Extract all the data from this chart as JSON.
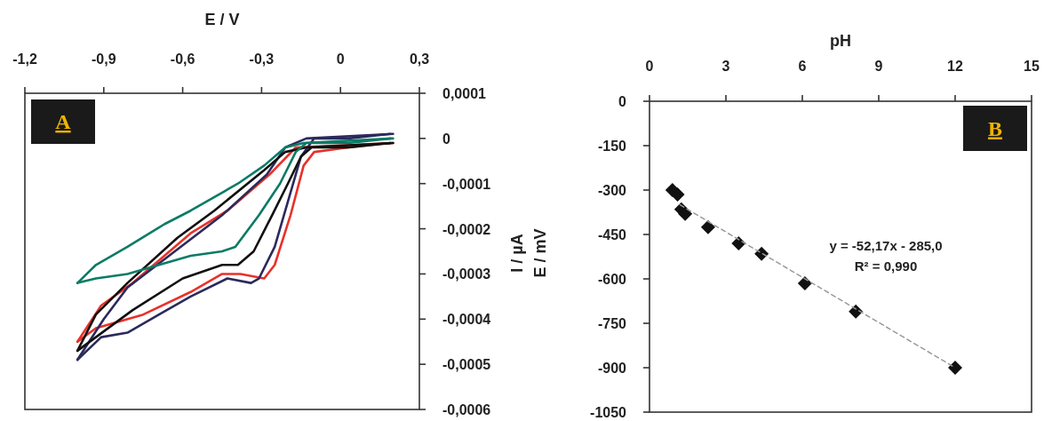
{
  "chart_data": [
    {
      "type": "line",
      "xlabel": "E / V",
      "ylabel": "I / µA",
      "annotations": [
        "A"
      ],
      "xlim": [
        -1.2,
        0.3
      ],
      "xticks": [
        {
          "value": -1.2,
          "label": "-1,2"
        },
        {
          "value": -0.9,
          "label": "-0,9"
        },
        {
          "value": -0.6,
          "label": "-0,6"
        },
        {
          "value": -0.3,
          "label": "-0,3"
        },
        0,
        {
          "value": 0.3,
          "label": "0,3"
        }
      ],
      "ylim": [
        -0.0006,
        0.0001
      ],
      "yticks": [
        {
          "value": 0.0001,
          "label": "0,0001"
        },
        0,
        {
          "value": -0.0001,
          "label": "-0,0001"
        },
        {
          "value": -0.0002,
          "label": "-0,0002"
        },
        {
          "value": -0.0003,
          "label": "-0,0003"
        },
        {
          "value": -0.0004,
          "label": "-0,0004"
        },
        {
          "value": -0.0005,
          "label": "-0,0005"
        },
        {
          "value": -0.0006,
          "label": "-0,0006"
        }
      ],
      "grid": false,
      "series": [
        {
          "color": "#e8312a",
          "x": [
            0.2,
            -0.17,
            -0.27,
            -0.43,
            -0.57,
            -0.79,
            -0.91,
            -1.0
          ],
          "values": [
            -1e-05,
            -2e-05,
            -8e-05,
            -0.00016,
            -0.00021,
            -0.00032,
            -0.00037,
            -0.00045
          ]
        },
        {
          "color": "#e8312a",
          "x": [
            -1.0,
            -0.93,
            -0.75,
            -0.57,
            -0.45,
            -0.38,
            -0.29,
            -0.25,
            -0.19,
            -0.14,
            -0.1,
            0.03,
            0.19
          ],
          "values": [
            -0.00045,
            -0.00042,
            -0.00039,
            -0.00034,
            -0.0003,
            -0.0003,
            -0.00031,
            -0.00028,
            -0.00017,
            -6e-05,
            -3e-05,
            -2e-05,
            -1e-05
          ]
        },
        {
          "color": "#2b2a5c",
          "x": [
            0.2,
            -0.13,
            -0.21,
            -0.28,
            -0.45,
            -0.63,
            -0.81,
            -0.9,
            -1.0
          ],
          "values": [
            1e-05,
            0,
            -2e-05,
            -8e-05,
            -0.00017,
            -0.00025,
            -0.00033,
            -0.0004,
            -0.00049
          ]
        },
        {
          "color": "#2b2a5c",
          "x": [
            -1.0,
            -0.91,
            -0.81,
            -0.69,
            -0.57,
            -0.43,
            -0.34,
            -0.31,
            -0.25,
            -0.19,
            -0.15,
            -0.1,
            0.03,
            0.19
          ],
          "values": [
            -0.00049,
            -0.00044,
            -0.00043,
            -0.00039,
            -0.00035,
            -0.00031,
            -0.00032,
            -0.00031,
            -0.00024,
            -0.00012,
            -4e-05,
            0,
            0,
            1e-05
          ]
        },
        {
          "color": "#111111",
          "x": [
            0.2,
            -0.13,
            -0.21,
            -0.29,
            -0.48,
            -0.62,
            -0.81,
            -0.93,
            -1.0
          ],
          "values": [
            -1e-05,
            -2e-05,
            -3e-05,
            -7e-05,
            -0.00016,
            -0.00022,
            -0.00032,
            -0.00039,
            -0.00047
          ]
        },
        {
          "color": "#111111",
          "x": [
            -1.0,
            -0.93,
            -0.79,
            -0.6,
            -0.45,
            -0.39,
            -0.33,
            -0.26,
            -0.2,
            -0.15,
            -0.11,
            0.03,
            0.19
          ],
          "values": [
            -0.00047,
            -0.00044,
            -0.00038,
            -0.00031,
            -0.00028,
            -0.00028,
            -0.00025,
            -0.00017,
            -0.0001,
            -4e-05,
            -2e-05,
            -2e-05,
            -1e-05
          ]
        },
        {
          "color": "#0b7b66",
          "x": [
            0.2,
            -0.14,
            -0.21,
            -0.29,
            -0.39,
            -0.57,
            -0.67,
            -0.81,
            -0.93,
            -1.0
          ],
          "values": [
            0,
            -1e-05,
            -2e-05,
            -6e-05,
            -0.0001,
            -0.00016,
            -0.00019,
            -0.00024,
            -0.00028,
            -0.00032
          ]
        },
        {
          "color": "#0b7b66",
          "x": [
            -1.0,
            -0.93,
            -0.81,
            -0.69,
            -0.57,
            -0.45,
            -0.4,
            -0.31,
            -0.23,
            -0.17,
            -0.13,
            0.03,
            0.19
          ],
          "values": [
            -0.00032,
            -0.00031,
            -0.0003,
            -0.00028,
            -0.00026,
            -0.00025,
            -0.00024,
            -0.00017,
            -0.0001,
            -3e-05,
            -1e-05,
            -1e-05,
            0
          ]
        }
      ]
    },
    {
      "type": "scatter",
      "xlabel": "pH",
      "ylabel": "E / mV",
      "annotations": [
        "B",
        "y = -52,17x - 285,0",
        "R² = 0,990"
      ],
      "xlim": [
        0,
        15
      ],
      "xticks": [
        0,
        3,
        6,
        9,
        12,
        15
      ],
      "ylim": [
        -1050,
        0
      ],
      "yticks": [
        0,
        -150,
        -300,
        -450,
        -600,
        -750,
        -900,
        -1050
      ],
      "grid": false,
      "marker": "diamond",
      "series": [
        {
          "color": "#111111",
          "x": [
            0.9,
            1.1,
            1.25,
            1.4,
            2.3,
            3.5,
            4.4,
            6.1,
            8.1,
            12.0
          ],
          "values": [
            -300,
            -315,
            -365,
            -380,
            -425,
            -480,
            -515,
            -615,
            -710,
            -900
          ]
        },
        {
          "type": "line",
          "color": "#999999",
          "line_style": "dashed",
          "marker": "none",
          "x": [
            1.2,
            12
          ],
          "values": [
            -350,
            -900
          ]
        }
      ]
    }
  ]
}
